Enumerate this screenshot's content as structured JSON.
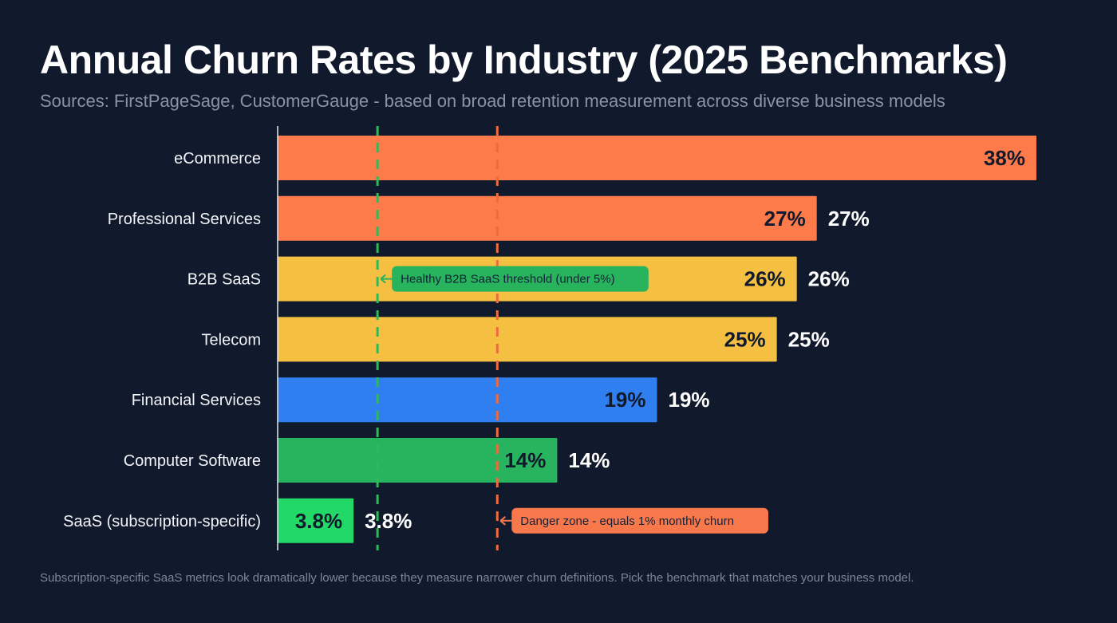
{
  "chart_data": {
    "type": "bar",
    "orientation": "horizontal",
    "title": "Annual Churn Rates by Industry (2025 Benchmarks)",
    "subtitle": "Sources: FirstPageSage, CustomerGauge - based on broad retention measurement across diverse business models",
    "categories": [
      "eCommerce",
      "Professional Services",
      "B2B SaaS",
      "Telecom",
      "Financial Services",
      "Computer Software",
      "SaaS (subscription-specific)"
    ],
    "values": [
      38,
      27,
      26,
      25,
      19,
      14,
      3.8
    ],
    "labels": [
      "38%",
      "27%",
      "26%",
      "25%",
      "19%",
      "14%",
      "3.8%"
    ],
    "colors": [
      "#fd7a4a",
      "#fd7a4a",
      "#f5c042",
      "#f5c042",
      "#2f7ff0",
      "#28b45f",
      "#22d866"
    ],
    "xlim": [
      0,
      38
    ],
    "xlabel": "",
    "ylabel": "",
    "grid": false,
    "reference_lines": [
      {
        "value": 5,
        "color": "#2fb95a",
        "label": "Healthy B2B SaaS threshold (under 5%)",
        "label_row": 2,
        "label_bg": "#27b45c"
      },
      {
        "value": 11,
        "color": "#ee6b3d",
        "label": "Danger zone - equals 1% monthly churn",
        "label_row": 6,
        "label_bg": "#f7794b"
      }
    ],
    "footnote": "Subscription-specific SaaS metrics look dramatically lower because they measure narrower churn definitions. Pick the benchmark that matches your business model."
  }
}
